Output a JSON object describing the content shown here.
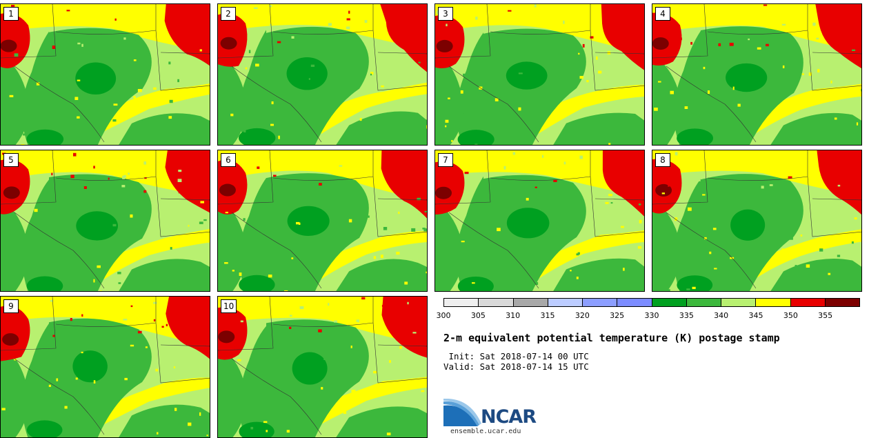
{
  "panels": [
    {
      "label": "1"
    },
    {
      "label": "2"
    },
    {
      "label": "3"
    },
    {
      "label": "4"
    },
    {
      "label": "5"
    },
    {
      "label": "6"
    },
    {
      "label": "7"
    },
    {
      "label": "8"
    },
    {
      "label": "9"
    },
    {
      "label": "10"
    }
  ],
  "colorbar": {
    "colors": [
      "#efefef",
      "#d9d9d9",
      "#a8a8a8",
      "#bcccff",
      "#8c9eff",
      "#7c8cff",
      "#00a020",
      "#3cb83c",
      "#b8f070",
      "#ffff00",
      "#e80000",
      "#7c0000"
    ],
    "tick_labels": [
      "300",
      "305",
      "310",
      "315",
      "320",
      "325",
      "330",
      "335",
      "340",
      "345",
      "350",
      "355"
    ]
  },
  "title": "2-m equivalent potential temperature (K) postage stamp",
  "init": " Init: Sat 2018-07-14 00 UTC",
  "valid": "Valid: Sat 2018-07-14 15 UTC",
  "logo": {
    "text": "NCAR",
    "url": "ensemble.ucar.edu",
    "icon": "ncar-swoosh-icon"
  }
}
